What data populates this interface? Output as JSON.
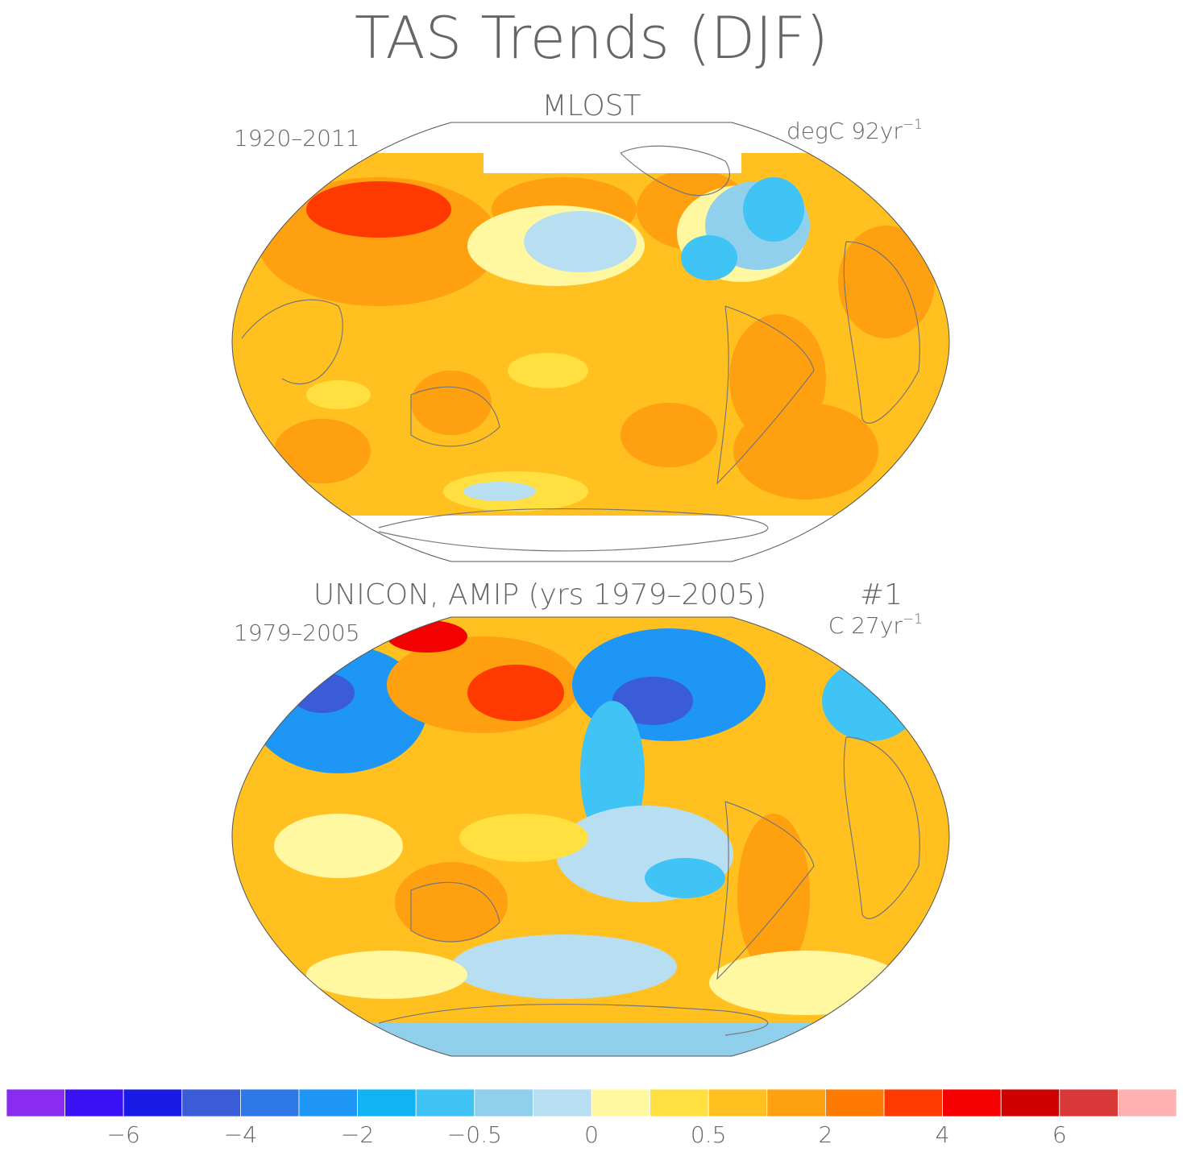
{
  "title": "TAS Trends (DJF)",
  "panels": [
    {
      "title": "MLOST",
      "period": "1920–2011",
      "units": {
        "text": "degC 92yr",
        "exponent": "−1"
      }
    },
    {
      "title": "UNICON, AMIP (yrs 1979–2005)",
      "run": "#1",
      "period": "1979–2005",
      "units": {
        "text": "C 27yr",
        "exponent": "−1"
      }
    }
  ],
  "colorbar": {
    "colors": [
      "#8a2cf0",
      "#3a10f5",
      "#1a1ae6",
      "#3a5cd6",
      "#2f78e8",
      "#1e96f5",
      "#10b4f5",
      "#40c4f5",
      "#90d0ec",
      "#b8def2",
      "#fff8a0",
      "#ffe040",
      "#ffc020",
      "#ffa010",
      "#ff7a00",
      "#ff3a00",
      "#f50000",
      "#d00000",
      "#d83838",
      "#ffb0b0"
    ],
    "labels": [
      {
        "value": -6,
        "label": "−6"
      },
      {
        "value": -4,
        "label": "−4"
      },
      {
        "value": -2,
        "label": "−2"
      },
      {
        "value": -0.5,
        "label": "−0.5"
      },
      0,
      0.5,
      2,
      4,
      6
    ]
  }
}
